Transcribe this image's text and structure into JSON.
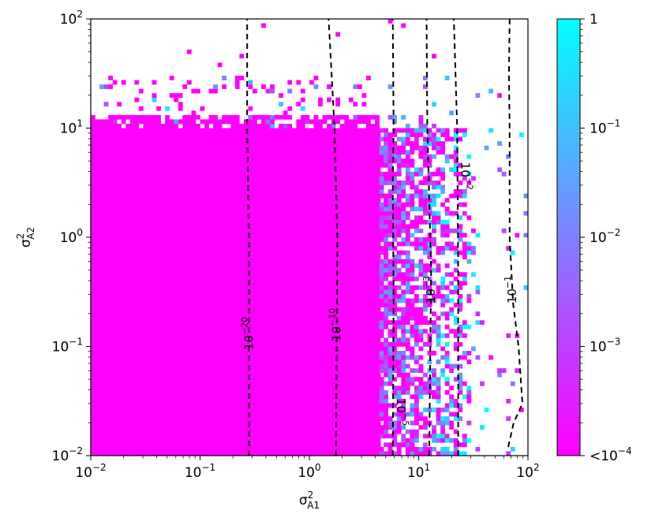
{
  "chart_data": {
    "type": "heatmap",
    "title": "",
    "xlabel": "σ²_A1",
    "ylabel": "σ²_A2",
    "xscale": "log",
    "yscale": "log",
    "xlim": [
      0.01,
      100
    ],
    "ylim": [
      0.01,
      100
    ],
    "grid": false,
    "x_ticks": [
      {
        "value": 0.01,
        "mantissa": "10",
        "exp": "−2"
      },
      {
        "value": 0.1,
        "mantissa": "10",
        "exp": "−1"
      },
      {
        "value": 1,
        "mantissa": "10",
        "exp": "0"
      },
      {
        "value": 10,
        "mantissa": "10",
        "exp": "1"
      },
      {
        "value": 100,
        "mantissa": "10",
        "exp": "2"
      }
    ],
    "y_ticks": [
      {
        "value": 0.01,
        "mantissa": "10",
        "exp": "−2"
      },
      {
        "value": 0.1,
        "mantissa": "10",
        "exp": "−1"
      },
      {
        "value": 1,
        "mantissa": "10",
        "exp": "0"
      },
      {
        "value": 10,
        "mantissa": "10",
        "exp": "1"
      },
      {
        "value": 100,
        "mantissa": "10",
        "exp": "2"
      }
    ],
    "colormap": {
      "name": "cool",
      "low": "#ff00ff",
      "high": "#00ffff"
    },
    "colorbar": {
      "scale": "log",
      "range": [
        0.0001,
        1
      ],
      "ticks": [
        {
          "value": 1,
          "text": "1"
        },
        {
          "value": 0.1,
          "mantissa": "10",
          "exp": "−1"
        },
        {
          "value": 0.01,
          "mantissa": "10",
          "exp": "−2"
        },
        {
          "value": 0.001,
          "mantissa": "10",
          "exp": "−3"
        },
        {
          "value": 0.0001,
          "prefix": "<10",
          "exp": "−4"
        }
      ]
    },
    "regions": [
      {
        "description": "solid magenta fill",
        "value": "<1e-4",
        "x_range": [
          0.01,
          4.5
        ],
        "y_range": [
          0.01,
          10
        ]
      },
      {
        "description": "mixed magenta/blue/cyan noise",
        "value_range": [
          0.0001,
          1
        ],
        "x_range": [
          4.5,
          25
        ],
        "y_range": [
          0.01,
          10
        ]
      },
      {
        "description": "sparse scattered cells",
        "x_range": [
          0.01,
          80
        ],
        "y_range": [
          10,
          100
        ]
      }
    ],
    "contours": [
      {
        "label": {
          "mantissa": "10",
          "exp": "−20"
        },
        "value": 1e-20,
        "x": [
          0.28,
          0.28,
          0.27,
          0.27
        ],
        "y": [
          0.01,
          1,
          10,
          100
        ]
      },
      {
        "label": {
          "mantissa": "10",
          "exp": "−10"
        },
        "value": 1e-10,
        "x": [
          1.75,
          1.8,
          1.7,
          1.5
        ],
        "y": [
          0.01,
          1,
          10,
          100
        ]
      },
      {
        "label": {
          "mantissa": "10",
          "exp": "−5"
        },
        "value": 1e-05,
        "x": [
          5.8,
          5.9,
          5.8,
          5.9,
          5.8
        ],
        "y": [
          0.01,
          0.3,
          3,
          10,
          100
        ]
      },
      {
        "label": {
          "mantissa": "10",
          "exp": "−3"
        },
        "value": 0.001,
        "x": [
          12.5,
          13,
          12,
          11.8
        ],
        "y": [
          0.01,
          0.5,
          10,
          100
        ]
      },
      {
        "label": {
          "mantissa": "10",
          "exp": "−2"
        },
        "value": 0.01,
        "x": [
          23,
          23,
          22.5,
          21
        ],
        "y": [
          0.01,
          0.5,
          10,
          100
        ]
      },
      {
        "label": {
          "mantissa": "10",
          "exp": "−1"
        },
        "value": 0.1,
        "x": [
          66,
          74,
          89,
          82,
          73,
          68,
          68,
          67,
          68
        ],
        "y": [
          0.012,
          0.02,
          0.03,
          0.1,
          0.25,
          1,
          10,
          30,
          100
        ]
      }
    ]
  }
}
